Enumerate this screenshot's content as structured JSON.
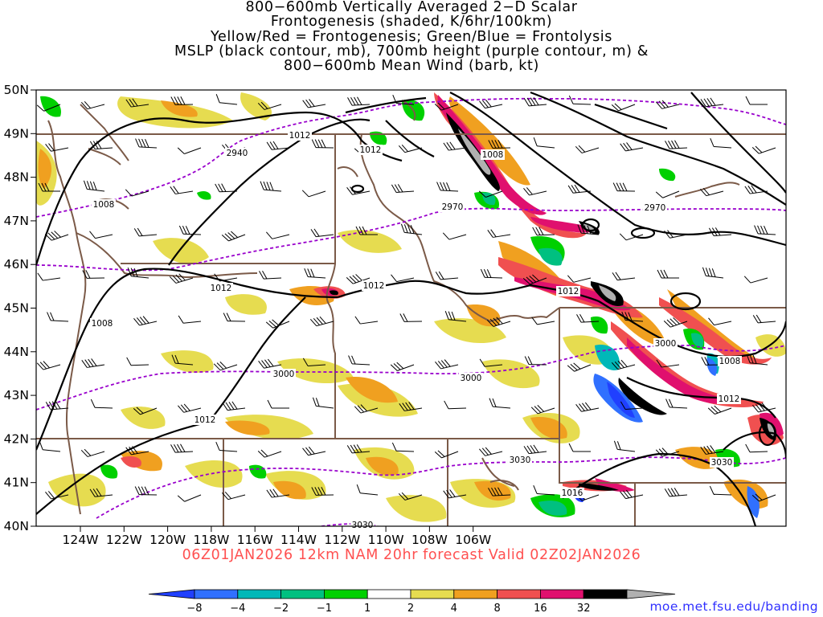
{
  "title": {
    "lines": [
      "800−600mb Vertically Averaged 2−D Scalar",
      "Frontogenesis (shaded, K/6hr/100km)",
      "Yellow/Red = Frontogenesis;  Green/Blue = Frontolysis",
      "MSLP (black contour, mb), 700mb height (purple contour, m) &",
      "800−600mb Mean Wind (barb, kt)"
    ]
  },
  "valid": "06Z01JAN2026 12km NAM 20hr forecast Valid 02Z02JAN2026",
  "credit": "moe.met.fsu.edu/banding",
  "axes": {
    "lat_labels": [
      "50N",
      "49N",
      "48N",
      "47N",
      "46N",
      "45N",
      "44N",
      "43N",
      "42N",
      "41N",
      "40N"
    ],
    "lon_labels": [
      "124W",
      "122W",
      "120W",
      "118W",
      "116W",
      "114W",
      "112W",
      "110W",
      "108W",
      "106W"
    ]
  },
  "colorbar": {
    "ticks": [
      "−8",
      "−4",
      "−2",
      "−1",
      "1",
      "2",
      "4",
      "8",
      "16",
      "32"
    ],
    "colors": [
      "#2040ff",
      "#3070ff",
      "#00b8b8",
      "#00c080",
      "#00d000",
      "#ffffff",
      "#e6dc50",
      "#f0a020",
      "#f05050",
      "#e0106e",
      "#000000",
      "#b0b0b0"
    ]
  },
  "contour_labels": {
    "mslp": [
      "1012",
      "1012",
      "1008",
      "1008",
      "1012",
      "1012",
      "1012",
      "1008",
      "1012",
      "1012",
      "1008",
      "1016"
    ],
    "height": [
      "2940",
      "2970",
      "2970",
      "3000",
      "3000",
      "3000",
      "3030",
      "3030",
      "3030"
    ]
  },
  "colors": {
    "mslp": "#000000",
    "height": "#9900cc",
    "borders": "#7b5a48"
  }
}
